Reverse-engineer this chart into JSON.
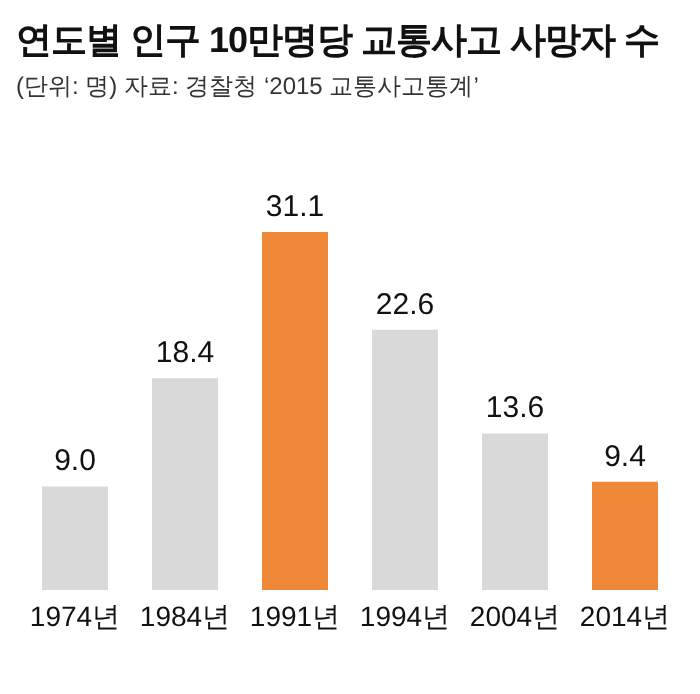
{
  "chart_data": {
    "type": "bar",
    "title": "연도별 인구 10만명당 교통사고 사망자 수",
    "subtitle": "(단위: 명)  자료: 경찰청 ‘2015 교통사고통계’",
    "categories": [
      "1974년",
      "1984년",
      "1991년",
      "1994년",
      "2004년",
      "2014년"
    ],
    "values": [
      9.0,
      18.4,
      31.1,
      22.6,
      13.6,
      9.4
    ],
    "colors": [
      "#d9d9d9",
      "#d9d9d9",
      "#f0883a",
      "#d9d9d9",
      "#d9d9d9",
      "#f0883a"
    ],
    "value_labels": [
      "9.0",
      "18.4",
      "31.1",
      "22.6",
      "13.6",
      "9.4"
    ],
    "grid": false,
    "legend": false
  }
}
